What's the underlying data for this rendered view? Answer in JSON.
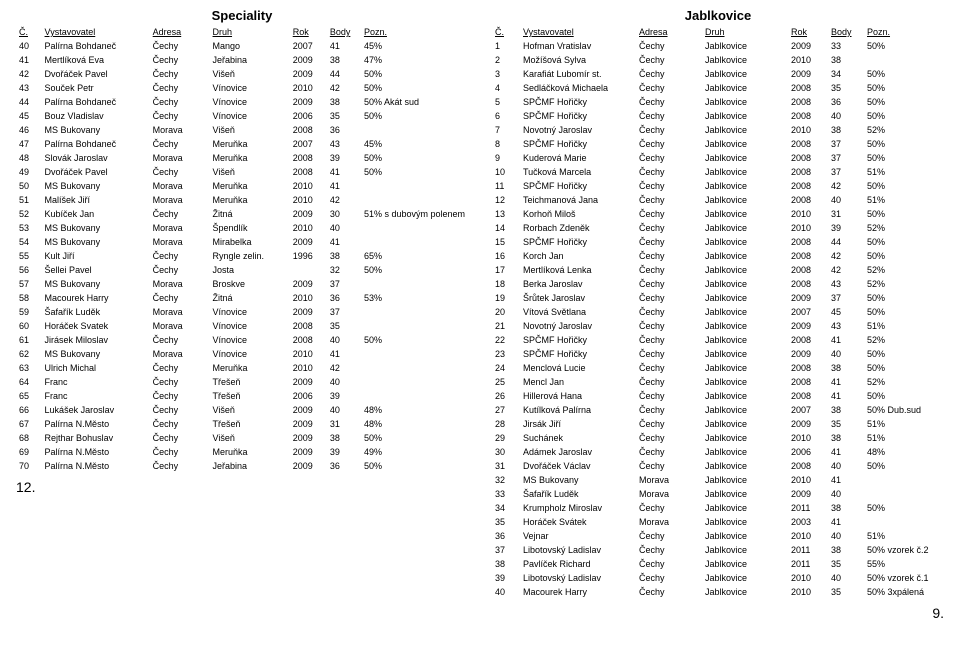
{
  "left": {
    "title": "Speciality",
    "headers": {
      "c": "Č.",
      "vyst": "Vystavovatel",
      "adr": "Adresa",
      "druh": "Druh",
      "rok": "Rok",
      "body": "Body",
      "pozn": "Pozn."
    },
    "rows": [
      {
        "c": "40",
        "vyst": "Palírna Bohdaneč",
        "adr": "Čechy",
        "druh": "Mango",
        "rok": "2007",
        "body": "41",
        "pozn": "45%"
      },
      {
        "c": "41",
        "vyst": "Mertlíková Eva",
        "adr": "Čechy",
        "druh": "Jeřabina",
        "rok": "2009",
        "body": "38",
        "pozn": "47%"
      },
      {
        "c": "42",
        "vyst": "Dvořáček Pavel",
        "adr": "Čechy",
        "druh": "Višeň",
        "rok": "2009",
        "body": "44",
        "pozn": "50%"
      },
      {
        "c": "43",
        "vyst": "Souček Petr",
        "adr": "Čechy",
        "druh": "Vínovice",
        "rok": "2010",
        "body": "42",
        "pozn": "50%"
      },
      {
        "c": "44",
        "vyst": "Palírna Bohdaneč",
        "adr": "Čechy",
        "druh": "Vínovice",
        "rok": "2009",
        "body": "38",
        "pozn": "50% Akát sud"
      },
      {
        "c": "45",
        "vyst": "Bouz Vladislav",
        "adr": "Čechy",
        "druh": "Vínovice",
        "rok": "2006",
        "body": "35",
        "pozn": "50%"
      },
      {
        "c": "46",
        "vyst": "MS Bukovany",
        "adr": "Morava",
        "druh": "Višeň",
        "rok": "2008",
        "body": "36",
        "pozn": ""
      },
      {
        "c": "47",
        "vyst": "Palírna Bohdaneč",
        "adr": "Čechy",
        "druh": "Meruňka",
        "rok": "2007",
        "body": "43",
        "pozn": "45%"
      },
      {
        "c": "48",
        "vyst": "Slovák Jaroslav",
        "adr": "Morava",
        "druh": "Meruňka",
        "rok": "2008",
        "body": "39",
        "pozn": "50%"
      },
      {
        "c": "49",
        "vyst": "Dvořáček Pavel",
        "adr": "Čechy",
        "druh": "Višeň",
        "rok": "2008",
        "body": "41",
        "pozn": "50%"
      },
      {
        "c": "50",
        "vyst": "MS Bukovany",
        "adr": "Morava",
        "druh": "Meruňka",
        "rok": "2010",
        "body": "41",
        "pozn": ""
      },
      {
        "c": "51",
        "vyst": "Malíšek Jiří",
        "adr": "Morava",
        "druh": "Meruňka",
        "rok": "2010",
        "body": "42",
        "pozn": ""
      },
      {
        "c": "52",
        "vyst": "Kubíček Jan",
        "adr": "Čechy",
        "druh": "Žitná",
        "rok": "2009",
        "body": "30",
        "pozn": "51% s dubovým polenem"
      },
      {
        "c": "53",
        "vyst": "MS Bukovany",
        "adr": "Morava",
        "druh": "Špendlík",
        "rok": "2010",
        "body": "40",
        "pozn": ""
      },
      {
        "c": "54",
        "vyst": "MS Bukovany",
        "adr": "Morava",
        "druh": "Mirabelka",
        "rok": "2009",
        "body": "41",
        "pozn": ""
      },
      {
        "c": "55",
        "vyst": "Kult Jiří",
        "adr": "Čechy",
        "druh": "Ryngle zelin.",
        "rok": "1996",
        "body": "38",
        "pozn": "65%"
      },
      {
        "c": "56",
        "vyst": "Šellei Pavel",
        "adr": "Čechy",
        "druh": "Josta",
        "rok": "",
        "body": "32",
        "pozn": "50%"
      },
      {
        "c": "57",
        "vyst": "MS Bukovany",
        "adr": "Morava",
        "druh": "Broskve",
        "rok": "2009",
        "body": "37",
        "pozn": ""
      },
      {
        "c": "58",
        "vyst": "Macourek Harry",
        "adr": "Čechy",
        "druh": "Žitná",
        "rok": "2010",
        "body": "36",
        "pozn": "53%"
      },
      {
        "c": "59",
        "vyst": "Šafařík Luděk",
        "adr": "Morava",
        "druh": "Vínovice",
        "rok": "2009",
        "body": "37",
        "pozn": ""
      },
      {
        "c": "60",
        "vyst": "Horáček Svatek",
        "adr": "Morava",
        "druh": "Vínovice",
        "rok": "2008",
        "body": "35",
        "pozn": ""
      },
      {
        "c": "61",
        "vyst": "Jirásek Miloslav",
        "adr": "Čechy",
        "druh": "Vínovice",
        "rok": "2008",
        "body": "40",
        "pozn": "50%"
      },
      {
        "c": "62",
        "vyst": "MS Bukovany",
        "adr": "Morava",
        "druh": "Vínovice",
        "rok": "2010",
        "body": "41",
        "pozn": ""
      },
      {
        "c": "63",
        "vyst": "Ulrich Michal",
        "adr": "Čechy",
        "druh": "Meruňka",
        "rok": "2010",
        "body": "42",
        "pozn": ""
      },
      {
        "c": "64",
        "vyst": "Franc",
        "adr": "Čechy",
        "druh": "Třešeň",
        "rok": "2009",
        "body": "40",
        "pozn": ""
      },
      {
        "c": "65",
        "vyst": "Franc",
        "adr": "Čechy",
        "druh": "Třešeň",
        "rok": "2006",
        "body": "39",
        "pozn": ""
      },
      {
        "c": "66",
        "vyst": "Lukášek Jaroslav",
        "adr": "Čechy",
        "druh": "Višeň",
        "rok": "2009",
        "body": "40",
        "pozn": "48%"
      },
      {
        "c": "67",
        "vyst": "Palírna N.Město",
        "adr": "Čechy",
        "druh": "Třešeň",
        "rok": "2009",
        "body": "31",
        "pozn": "48%"
      },
      {
        "c": "68",
        "vyst": "Rejthar Bohuslav",
        "adr": "Čechy",
        "druh": "Višeň",
        "rok": "2009",
        "body": "38",
        "pozn": "50%"
      },
      {
        "c": "69",
        "vyst": "Palírna N.Město",
        "adr": "Čechy",
        "druh": "Meruňka",
        "rok": "2009",
        "body": "39",
        "pozn": "49%"
      },
      {
        "c": "70",
        "vyst": "Palírna N.Město",
        "adr": "Čechy",
        "druh": "Jeřabina",
        "rok": "2009",
        "body": "36",
        "pozn": "50%"
      }
    ],
    "pagenum": "12."
  },
  "right": {
    "title": "Jablkovice",
    "headers": {
      "c": "Č.",
      "vyst": "Vystavovatel",
      "adr": "Adresa",
      "druh": "Druh",
      "rok": "Rok",
      "body": "Body",
      "pozn": "Pozn."
    },
    "rows": [
      {
        "c": "1",
        "vyst": "Hofman Vratislav",
        "adr": "Čechy",
        "druh": "Jablkovice",
        "rok": "2009",
        "body": "33",
        "pozn": "50%"
      },
      {
        "c": "2",
        "vyst": "Možíšová Sylva",
        "adr": "Čechy",
        "druh": "Jablkovice",
        "rok": "2010",
        "body": "38",
        "pozn": ""
      },
      {
        "c": "3",
        "vyst": "Karafiát Lubomír st.",
        "adr": "Čechy",
        "druh": "Jablkovice",
        "rok": "2009",
        "body": "34",
        "pozn": "50%"
      },
      {
        "c": "4",
        "vyst": "Sedláčková Michaela",
        "adr": "Čechy",
        "druh": "Jablkovice",
        "rok": "2008",
        "body": "35",
        "pozn": "50%"
      },
      {
        "c": "5",
        "vyst": "SPČMF Hořičky",
        "adr": "Čechy",
        "druh": "Jablkovice",
        "rok": "2008",
        "body": "36",
        "pozn": "50%"
      },
      {
        "c": "6",
        "vyst": "SPČMF Hořičky",
        "adr": "Čechy",
        "druh": "Jablkovice",
        "rok": "2008",
        "body": "40",
        "pozn": "50%"
      },
      {
        "c": "7",
        "vyst": "Novotný Jaroslav",
        "adr": "Čechy",
        "druh": "Jablkovice",
        "rok": "2010",
        "body": "38",
        "pozn": "52%"
      },
      {
        "c": "8",
        "vyst": "SPČMF Hořičky",
        "adr": "Čechy",
        "druh": "Jablkovice",
        "rok": "2008",
        "body": "37",
        "pozn": "50%"
      },
      {
        "c": "9",
        "vyst": "Kuderová Marie",
        "adr": "Čechy",
        "druh": "Jablkovice",
        "rok": "2008",
        "body": "37",
        "pozn": "50%"
      },
      {
        "c": "10",
        "vyst": "Tučková Marcela",
        "adr": "Čechy",
        "druh": "Jablkovice",
        "rok": "2008",
        "body": "37",
        "pozn": "51%"
      },
      {
        "c": "11",
        "vyst": "SPČMF Hořičky",
        "adr": "Čechy",
        "druh": "Jablkovice",
        "rok": "2008",
        "body": "42",
        "pozn": "50%"
      },
      {
        "c": "12",
        "vyst": "Teichmanová Jana",
        "adr": "Čechy",
        "druh": "Jablkovice",
        "rok": "2008",
        "body": "40",
        "pozn": "51%"
      },
      {
        "c": "13",
        "vyst": "Korhoň Miloš",
        "adr": "Čechy",
        "druh": "Jablkovice",
        "rok": "2010",
        "body": "31",
        "pozn": "50%"
      },
      {
        "c": "14",
        "vyst": "Rorbach Zdeněk",
        "adr": "Čechy",
        "druh": "Jablkovice",
        "rok": "2010",
        "body": "39",
        "pozn": "52%"
      },
      {
        "c": "15",
        "vyst": "SPČMF Hořičky",
        "adr": "Čechy",
        "druh": "Jablkovice",
        "rok": "2008",
        "body": "44",
        "pozn": "50%"
      },
      {
        "c": "16",
        "vyst": "Korch Jan",
        "adr": "Čechy",
        "druh": "Jablkovice",
        "rok": "2008",
        "body": "42",
        "pozn": "50%"
      },
      {
        "c": "17",
        "vyst": "Mertlíková Lenka",
        "adr": "Čechy",
        "druh": "Jablkovice",
        "rok": "2008",
        "body": "42",
        "pozn": "52%"
      },
      {
        "c": "18",
        "vyst": "Berka Jaroslav",
        "adr": "Čechy",
        "druh": "Jablkovice",
        "rok": "2008",
        "body": "43",
        "pozn": "52%"
      },
      {
        "c": "19",
        "vyst": "Šrůtek Jaroslav",
        "adr": "Čechy",
        "druh": "Jablkovice",
        "rok": "2009",
        "body": "37",
        "pozn": "50%"
      },
      {
        "c": "20",
        "vyst": "Vítová Světlana",
        "adr": "Čechy",
        "druh": "Jablkovice",
        "rok": "2007",
        "body": "45",
        "pozn": "50%"
      },
      {
        "c": "21",
        "vyst": "Novotný Jaroslav",
        "adr": "Čechy",
        "druh": "Jablkovice",
        "rok": "2009",
        "body": "43",
        "pozn": "51%"
      },
      {
        "c": "22",
        "vyst": "SPČMF Hořičky",
        "adr": "Čechy",
        "druh": "Jablkovice",
        "rok": "2008",
        "body": "41",
        "pozn": "52%"
      },
      {
        "c": "23",
        "vyst": "SPČMF Hořičky",
        "adr": "Čechy",
        "druh": "Jablkovice",
        "rok": "2009",
        "body": "40",
        "pozn": "50%"
      },
      {
        "c": "24",
        "vyst": "Menclová Lucie",
        "adr": "Čechy",
        "druh": "Jablkovice",
        "rok": "2008",
        "body": "38",
        "pozn": "50%"
      },
      {
        "c": "25",
        "vyst": "Mencl Jan",
        "adr": "Čechy",
        "druh": "Jablkovice",
        "rok": "2008",
        "body": "41",
        "pozn": "52%"
      },
      {
        "c": "26",
        "vyst": "Hillerová Hana",
        "adr": "Čechy",
        "druh": "Jablkovice",
        "rok": "2008",
        "body": "41",
        "pozn": "50%"
      },
      {
        "c": "27",
        "vyst": "Kutílková Palírna",
        "adr": "Čechy",
        "druh": "Jablkovice",
        "rok": "2007",
        "body": "38",
        "pozn": "50% Dub.sud"
      },
      {
        "c": "28",
        "vyst": "Jirsák Jiří",
        "adr": "Čechy",
        "druh": "Jablkovice",
        "rok": "2009",
        "body": "35",
        "pozn": "51%"
      },
      {
        "c": "29",
        "vyst": "Suchánek",
        "adr": "Čechy",
        "druh": "Jablkovice",
        "rok": "2010",
        "body": "38",
        "pozn": "51%"
      },
      {
        "c": "30",
        "vyst": "Adámek Jaroslav",
        "adr": "Čechy",
        "druh": "Jablkovice",
        "rok": "2006",
        "body": "41",
        "pozn": "48%"
      },
      {
        "c": "31",
        "vyst": "Dvořáček Václav",
        "adr": "Čechy",
        "druh": "Jablkovice",
        "rok": "2008",
        "body": "40",
        "pozn": "50%"
      },
      {
        "c": "32",
        "vyst": "MS Bukovany",
        "adr": "Morava",
        "druh": "Jablkovice",
        "rok": "2010",
        "body": "41",
        "pozn": ""
      },
      {
        "c": "33",
        "vyst": "Šafařík Luděk",
        "adr": "Morava",
        "druh": "Jablkovice",
        "rok": "2009",
        "body": "40",
        "pozn": ""
      },
      {
        "c": "34",
        "vyst": "Krumpholz Miroslav",
        "adr": "Čechy",
        "druh": "Jablkovice",
        "rok": "2011",
        "body": "38",
        "pozn": "50%"
      },
      {
        "c": "35",
        "vyst": "Horáček Svátek",
        "adr": "Morava",
        "druh": "Jablkovice",
        "rok": "2003",
        "body": "41",
        "pozn": ""
      },
      {
        "c": "36",
        "vyst": "Vejnar",
        "adr": "Čechy",
        "druh": "Jablkovice",
        "rok": "2010",
        "body": "40",
        "pozn": "51%"
      },
      {
        "c": "37",
        "vyst": "Libotovský Ladislav",
        "adr": "Čechy",
        "druh": "Jablkovice",
        "rok": "2011",
        "body": "38",
        "pozn": "50% vzorek č.2"
      },
      {
        "c": "38",
        "vyst": "Pavlíček Richard",
        "adr": "Čechy",
        "druh": "Jablkovice",
        "rok": "2011",
        "body": "35",
        "pozn": "55%"
      },
      {
        "c": "39",
        "vyst": "Libotovský Ladislav",
        "adr": "Čechy",
        "druh": "Jablkovice",
        "rok": "2010",
        "body": "40",
        "pozn": "50% vzorek č.1"
      },
      {
        "c": "40",
        "vyst": "Macourek Harry",
        "adr": "Čechy",
        "druh": "Jablkovice",
        "rok": "2010",
        "body": "35",
        "pozn": "50% 3xpálená"
      }
    ],
    "pagenum": "9."
  }
}
